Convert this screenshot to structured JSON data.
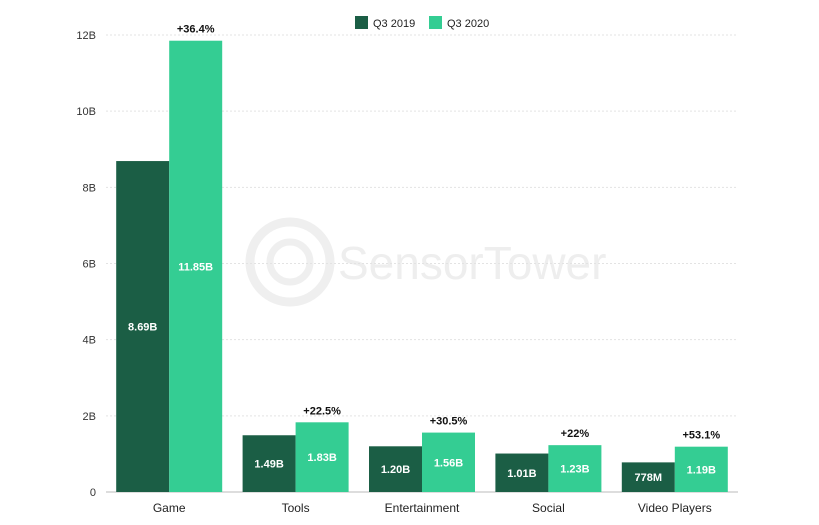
{
  "chart_data": {
    "type": "bar",
    "categories": [
      "Game",
      "Tools",
      "Entertainment",
      "Social",
      "Video Players"
    ],
    "series": [
      {
        "name": "Q3 2019",
        "color": "#1b5e45",
        "values": [
          8.69,
          1.49,
          1.2,
          1.01,
          0.778
        ],
        "labels": [
          "8.69B",
          "1.49B",
          "1.20B",
          "1.01B",
          "778M"
        ]
      },
      {
        "name": "Q3 2020",
        "color": "#34cd93",
        "values": [
          11.85,
          1.83,
          1.56,
          1.23,
          1.19
        ],
        "labels": [
          "11.85B",
          "1.83B",
          "1.56B",
          "1.23B",
          "1.19B"
        ]
      }
    ],
    "growth_labels": [
      "+36.4%",
      "+22.5%",
      "+30.5%",
      "+22%",
      "+53.1%"
    ],
    "y_ticks": [
      0,
      2,
      4,
      6,
      8,
      10,
      12
    ],
    "y_tick_labels": [
      "0",
      "2B",
      "4B",
      "6B",
      "8B",
      "10B",
      "12B"
    ],
    "ylim": [
      0,
      12
    ],
    "grid": true,
    "legend_position": "top-center",
    "watermark": "SensorTower"
  }
}
